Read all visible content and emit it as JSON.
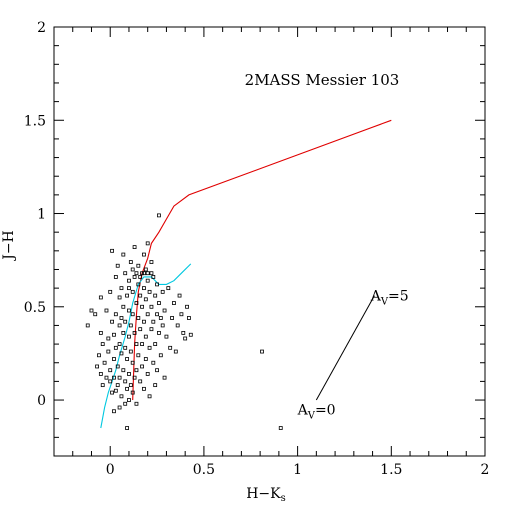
{
  "chart_data": {
    "type": "scatter",
    "title": "2MASS Messier 103",
    "xlabel": "H−K",
    "xlabel_subscript": "s",
    "ylabel": "J−H",
    "xlim": [
      -0.3,
      2.0
    ],
    "ylim": [
      -0.3,
      2.0
    ],
    "x_ticks": [
      0,
      0.5,
      1,
      1.5,
      2
    ],
    "x_tick_labels": [
      "0",
      "0.5",
      "1",
      "1.5",
      "2"
    ],
    "y_ticks": [
      0,
      0.5,
      1,
      1.5,
      2
    ],
    "y_tick_labels": [
      "0",
      "0.5",
      "1",
      "1.5",
      "2"
    ],
    "grid": false,
    "colors": {
      "points": "#000000",
      "giant_branch": "#e00000",
      "main_sequence": "#00c8e0",
      "reddening_vector": "#000000"
    },
    "series": [
      {
        "kind": "points",
        "points": [
          [
            -0.12,
            0.4
          ],
          [
            -0.1,
            0.48
          ],
          [
            -0.08,
            0.46
          ],
          [
            -0.07,
            0.18
          ],
          [
            -0.06,
            0.24
          ],
          [
            -0.05,
            0.55
          ],
          [
            -0.05,
            0.36
          ],
          [
            -0.05,
            0.14
          ],
          [
            -0.04,
            0.3
          ],
          [
            -0.04,
            0.08
          ],
          [
            -0.03,
            0.2
          ],
          [
            -0.02,
            0.12
          ],
          [
            -0.02,
            0.48
          ],
          [
            -0.01,
            0.33
          ],
          [
            -0.01,
            0.26
          ],
          [
            0.0,
            0.16
          ],
          [
            0.0,
            0.1
          ],
          [
            0.0,
            0.58
          ],
          [
            0.01,
            0.8
          ],
          [
            0.01,
            0.04
          ],
          [
            0.01,
            0.42
          ],
          [
            0.02,
            0.35
          ],
          [
            0.02,
            0.22
          ],
          [
            0.02,
            0.12
          ],
          [
            0.03,
            0.05
          ],
          [
            0.03,
            0.66
          ],
          [
            0.03,
            0.46
          ],
          [
            0.03,
            0.28
          ],
          [
            0.04,
            0.72
          ],
          [
            0.04,
            0.18
          ],
          [
            0.04,
            0.08
          ],
          [
            0.05,
            0.55
          ],
          [
            0.05,
            0.4
          ],
          [
            0.05,
            0.3
          ],
          [
            0.05,
            0.12
          ],
          [
            0.06,
            0.6
          ],
          [
            0.06,
            0.44
          ],
          [
            0.06,
            0.25
          ],
          [
            0.06,
            0.02
          ],
          [
            0.07,
            0.78
          ],
          [
            0.07,
            0.5
          ],
          [
            0.07,
            0.36
          ],
          [
            0.07,
            0.16
          ],
          [
            0.08,
            0.68
          ],
          [
            0.08,
            0.42
          ],
          [
            0.08,
            0.28
          ],
          [
            0.08,
            0.1
          ],
          [
            0.09,
            0.56
          ],
          [
            0.09,
            0.22
          ],
          [
            0.09,
            0.06
          ],
          [
            0.1,
            0.64
          ],
          [
            0.1,
            0.48
          ],
          [
            0.1,
            0.34
          ],
          [
            0.1,
            0.14
          ],
          [
            0.1,
            0.0
          ],
          [
            0.11,
            0.74
          ],
          [
            0.11,
            0.4
          ],
          [
            0.11,
            0.26
          ],
          [
            0.11,
            0.08
          ],
          [
            0.12,
            0.58
          ],
          [
            0.12,
            0.46
          ],
          [
            0.12,
            0.2
          ],
          [
            0.12,
            0.04
          ],
          [
            0.13,
            0.82
          ],
          [
            0.13,
            0.66
          ],
          [
            0.13,
            0.36
          ],
          [
            0.13,
            0.12
          ],
          [
            0.14,
            0.52
          ],
          [
            0.14,
            0.3
          ],
          [
            0.14,
            0.16
          ],
          [
            0.14,
            -0.02
          ],
          [
            0.15,
            0.72
          ],
          [
            0.15,
            0.62
          ],
          [
            0.15,
            0.44
          ],
          [
            0.15,
            0.24
          ],
          [
            0.16,
            0.56
          ],
          [
            0.16,
            0.38
          ],
          [
            0.16,
            0.1
          ],
          [
            0.17,
            0.68
          ],
          [
            0.17,
            0.5
          ],
          [
            0.17,
            0.3
          ],
          [
            0.17,
            0.18
          ],
          [
            0.18,
            0.78
          ],
          [
            0.18,
            0.6
          ],
          [
            0.18,
            0.42
          ],
          [
            0.18,
            0.06
          ],
          [
            0.19,
            0.7
          ],
          [
            0.19,
            0.54
          ],
          [
            0.19,
            0.34
          ],
          [
            0.19,
            0.22
          ],
          [
            0.2,
            0.84
          ],
          [
            0.2,
            0.64
          ],
          [
            0.2,
            0.46
          ],
          [
            0.2,
            0.14
          ],
          [
            0.21,
            0.58
          ],
          [
            0.21,
            0.28
          ],
          [
            0.21,
            0.02
          ],
          [
            0.22,
            0.74
          ],
          [
            0.22,
            0.5
          ],
          [
            0.22,
            0.38
          ],
          [
            0.23,
            0.66
          ],
          [
            0.23,
            0.42
          ],
          [
            0.23,
            0.2
          ],
          [
            0.24,
            0.56
          ],
          [
            0.24,
            0.3
          ],
          [
            0.24,
            0.08
          ],
          [
            0.25,
            0.62
          ],
          [
            0.25,
            0.46
          ],
          [
            0.25,
            0.16
          ],
          [
            0.26,
            0.99
          ],
          [
            0.26,
            0.52
          ],
          [
            0.26,
            0.36
          ],
          [
            0.27,
            0.44
          ],
          [
            0.27,
            0.24
          ],
          [
            0.28,
            0.58
          ],
          [
            0.28,
            0.4
          ],
          [
            0.29,
            0.48
          ],
          [
            0.29,
            0.12
          ],
          [
            0.3,
            0.34
          ],
          [
            0.31,
            0.6
          ],
          [
            0.32,
            0.28
          ],
          [
            0.33,
            0.44
          ],
          [
            0.34,
            0.52
          ],
          [
            0.35,
            0.26
          ],
          [
            0.36,
            0.4
          ],
          [
            0.37,
            0.56
          ],
          [
            0.38,
            0.46
          ],
          [
            0.39,
            0.36
          ],
          [
            0.4,
            0.33
          ],
          [
            0.41,
            0.5
          ],
          [
            0.42,
            0.44
          ],
          [
            0.43,
            0.35
          ],
          [
            0.1,
            0.6
          ],
          [
            0.12,
            0.7
          ],
          [
            0.14,
            0.68
          ],
          [
            0.16,
            0.66
          ],
          [
            0.18,
            0.68
          ],
          [
            0.2,
            0.68
          ],
          [
            0.22,
            0.68
          ],
          [
            0.08,
            -0.02
          ],
          [
            0.05,
            -0.04
          ],
          [
            0.02,
            -0.06
          ],
          [
            0.09,
            -0.15
          ],
          [
            0.81,
            0.26
          ],
          [
            0.91,
            -0.15
          ]
        ]
      },
      {
        "kind": "line",
        "name": "",
        "points": [
          [
            0.12,
            0.0
          ],
          [
            0.13,
            0.3
          ],
          [
            0.14,
            0.46
          ],
          [
            0.15,
            0.58
          ],
          [
            0.17,
            0.68
          ],
          [
            0.2,
            0.76
          ],
          [
            0.22,
            0.84
          ],
          [
            0.26,
            0.9
          ],
          [
            0.3,
            0.97
          ],
          [
            0.34,
            1.04
          ],
          [
            0.42,
            1.1
          ],
          [
            1.5,
            1.5
          ]
        ]
      },
      {
        "kind": "line",
        "name": "",
        "points": [
          [
            -0.05,
            -0.15
          ],
          [
            -0.03,
            -0.04
          ],
          [
            -0.01,
            0.04
          ],
          [
            0.01,
            0.1
          ],
          [
            0.03,
            0.16
          ],
          [
            0.05,
            0.24
          ],
          [
            0.08,
            0.34
          ],
          [
            0.1,
            0.42
          ],
          [
            0.12,
            0.52
          ],
          [
            0.15,
            0.62
          ],
          [
            0.18,
            0.66
          ],
          [
            0.22,
            0.66
          ],
          [
            0.26,
            0.62
          ],
          [
            0.3,
            0.62
          ],
          [
            0.34,
            0.64
          ],
          [
            0.38,
            0.68
          ],
          [
            0.43,
            0.73
          ]
        ]
      }
    ],
    "annotations": [
      {
        "text": "A",
        "subscript": "V",
        "suffix": "=5",
        "x": 1.39,
        "y": 0.56
      },
      {
        "text": "A",
        "subscript": "V",
        "suffix": "=0",
        "x": 1.0,
        "y": -0.05
      }
    ],
    "reddening_vector": {
      "from": [
        1.1,
        0.0
      ],
      "to": [
        1.41,
        0.56
      ]
    }
  }
}
